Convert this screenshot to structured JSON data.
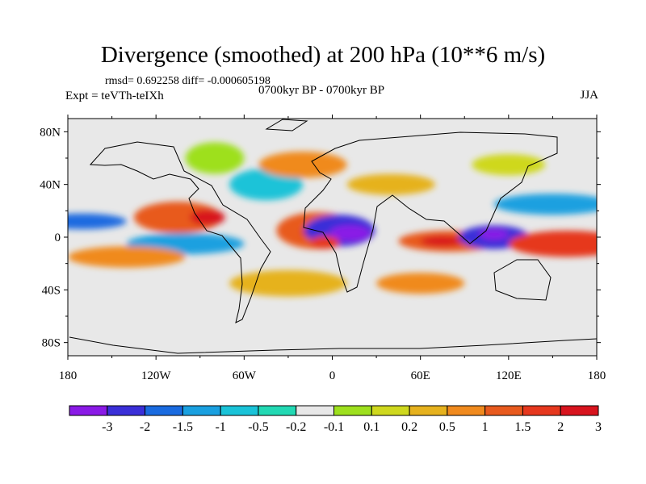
{
  "title": "Divergence (smoothed) at 200 hPa (10**6 m/s)",
  "stats": "rmsd= 0.692258 diff= -0.000605198",
  "experiment": "Expt = teVTh-teIXh",
  "period": "0700kyr BP - 0700kyr BP",
  "season": "JJA",
  "lon_ticks": [
    "180",
    "120W",
    "60W",
    "0",
    "60E",
    "120E",
    "180"
  ],
  "lat_ticks": [
    "80N",
    "40N",
    "0",
    "40S",
    "80S"
  ],
  "colorbar": {
    "labels": [
      "-3",
      "-2",
      "-1.5",
      "-1",
      "-0.5",
      "-0.2",
      "-0.1",
      "0.1",
      "0.2",
      "0.5",
      "1",
      "1.5",
      "2",
      "3"
    ],
    "colors": [
      "#8a1ae6",
      "#3a2fd8",
      "#1a6be0",
      "#1aa0e0",
      "#1ac3d8",
      "#22d9b4",
      "#e8e8e8",
      "#9ee01e",
      "#cfd81e",
      "#e6b21e",
      "#f08a1e",
      "#e85a1e",
      "#e6381e",
      "#d8141e"
    ]
  },
  "map": {
    "background": "#e8e8e8",
    "blobs": [
      {
        "lon": -10,
        "lat": 5,
        "rx": 28,
        "ry": 14,
        "c": "#e85a1e"
      },
      {
        "lon": -5,
        "lat": 4,
        "rx": 16,
        "ry": 6,
        "c": "#d8141e"
      },
      {
        "lon": 5,
        "lat": 5,
        "rx": 24,
        "ry": 12,
        "c": "#3a2fd8"
      },
      {
        "lon": 12,
        "lat": 3,
        "rx": 14,
        "ry": 6,
        "c": "#8a1ae6"
      },
      {
        "lon": -5,
        "lat": -4,
        "rx": 10,
        "ry": 5,
        "c": "#e6381e"
      },
      {
        "lon": 80,
        "lat": -3,
        "rx": 35,
        "ry": 8,
        "c": "#e85a1e"
      },
      {
        "lon": 75,
        "lat": -3,
        "rx": 15,
        "ry": 4,
        "c": "#d8141e"
      },
      {
        "lon": 110,
        "lat": 0,
        "rx": 24,
        "ry": 9,
        "c": "#3a2fd8"
      },
      {
        "lon": 110,
        "lat": 2,
        "rx": 10,
        "ry": 4,
        "c": "#8a1ae6"
      },
      {
        "lon": 160,
        "lat": -5,
        "rx": 40,
        "ry": 10,
        "c": "#e6381e"
      },
      {
        "lon": -105,
        "lat": 15,
        "rx": 30,
        "ry": 12,
        "c": "#e85a1e"
      },
      {
        "lon": -85,
        "lat": 15,
        "rx": 12,
        "ry": 6,
        "c": "#d8141e"
      },
      {
        "lon": -100,
        "lat": -5,
        "rx": 40,
        "ry": 8,
        "c": "#1aa0e0"
      },
      {
        "lon": -170,
        "lat": 12,
        "rx": 30,
        "ry": 6,
        "c": "#1a6be0"
      },
      {
        "lon": -140,
        "lat": -15,
        "rx": 40,
        "ry": 8,
        "c": "#f08a1e"
      },
      {
        "lon": -30,
        "lat": -35,
        "rx": 40,
        "ry": 10,
        "c": "#e6b21e"
      },
      {
        "lon": 60,
        "lat": -35,
        "rx": 30,
        "ry": 8,
        "c": "#f08a1e"
      },
      {
        "lon": -45,
        "lat": 40,
        "rx": 25,
        "ry": 12,
        "c": "#1ac3d8"
      },
      {
        "lon": -20,
        "lat": 55,
        "rx": 30,
        "ry": 10,
        "c": "#f08a1e"
      },
      {
        "lon": 40,
        "lat": 40,
        "rx": 30,
        "ry": 8,
        "c": "#e6b21e"
      },
      {
        "lon": 150,
        "lat": 25,
        "rx": 40,
        "ry": 8,
        "c": "#1aa0e0"
      },
      {
        "lon": -80,
        "lat": 60,
        "rx": 20,
        "ry": 12,
        "c": "#9ee01e"
      },
      {
        "lon": 120,
        "lat": 55,
        "rx": 25,
        "ry": 8,
        "c": "#cfd81e"
      }
    ]
  }
}
